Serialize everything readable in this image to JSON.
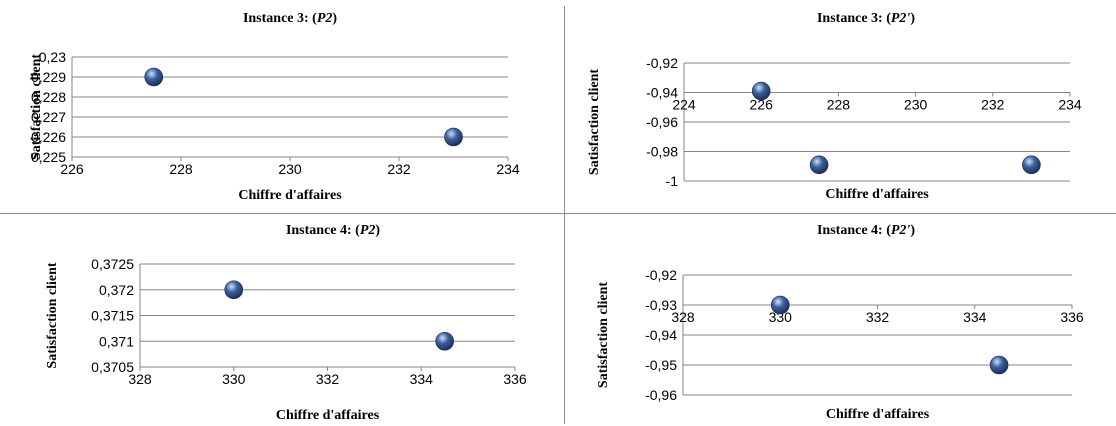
{
  "colors": {
    "marker": "#3b5f9e",
    "marker_highlight": "#cfe0f5",
    "marker_dark": "#1a2f5a",
    "grid": "#858585",
    "divider": "#8c8c8c"
  },
  "chart_data": [
    {
      "type": "scatter",
      "title_prefix": "Instance 3: (",
      "title_var": "P2",
      "title_suffix": ")",
      "xlabel": "Chiffre d'affaires",
      "ylabel": "Satisfaction client",
      "xlim": [
        226,
        234
      ],
      "ylim": [
        0.225,
        0.23
      ],
      "xticks": [
        "226",
        "228",
        "230",
        "232",
        "234"
      ],
      "yticks": [
        "0,225",
        "0,226",
        "0,227",
        "0,228",
        "0,229",
        "0,23"
      ],
      "points": [
        {
          "x": 227.5,
          "y": 0.229
        },
        {
          "x": 233,
          "y": 0.226
        }
      ],
      "grid": true
    },
    {
      "type": "scatter",
      "title_prefix": "Instance 3: (",
      "title_var": "P2'",
      "title_suffix": ")",
      "xlabel": "Chiffre d'affaires",
      "ylabel": "Satisfaction client",
      "xlim": [
        224,
        234
      ],
      "ylim": [
        -1,
        -0.92
      ],
      "xticks": [
        "224",
        "226",
        "228",
        "230",
        "232",
        "234"
      ],
      "yticks": [
        "-1",
        "-0,98",
        "-0,96",
        "-0,94",
        "-0,92"
      ],
      "points": [
        {
          "x": 226,
          "y": -0.939
        },
        {
          "x": 227.5,
          "y": -0.989
        },
        {
          "x": 233,
          "y": -0.989
        }
      ],
      "x_axis_at_top": true,
      "grid": true
    },
    {
      "type": "scatter",
      "title_prefix": "Instance  4: (",
      "title_var": "P2",
      "title_suffix": ")",
      "xlabel": "Chiffre d'affaires",
      "ylabel": "Satisfaction client",
      "xlim": [
        328,
        336
      ],
      "ylim": [
        0.3705,
        0.3725
      ],
      "xticks": [
        "328",
        "330",
        "332",
        "334",
        "336"
      ],
      "yticks": [
        "0,3705",
        "0,371",
        "0,3715",
        "0,372",
        "0,3725"
      ],
      "points": [
        {
          "x": 330,
          "y": 0.372
        },
        {
          "x": 334.5,
          "y": 0.371
        }
      ],
      "grid": true
    },
    {
      "type": "scatter",
      "title_prefix": "Instance  4: (",
      "title_var": "P2'",
      "title_suffix": ")",
      "xlabel": "Chiffre d'affaires",
      "ylabel": "Satisfaction client",
      "xlim": [
        328,
        336
      ],
      "ylim": [
        -0.96,
        -0.92
      ],
      "xticks": [
        "328",
        "330",
        "332",
        "334",
        "336"
      ],
      "yticks": [
        "-0,96",
        "-0,95",
        "-0,94",
        "-0,93",
        "-0,92"
      ],
      "points": [
        {
          "x": 330,
          "y": -0.93
        },
        {
          "x": 334.5,
          "y": -0.95
        }
      ],
      "x_axis_at_top": true,
      "grid": true
    }
  ]
}
